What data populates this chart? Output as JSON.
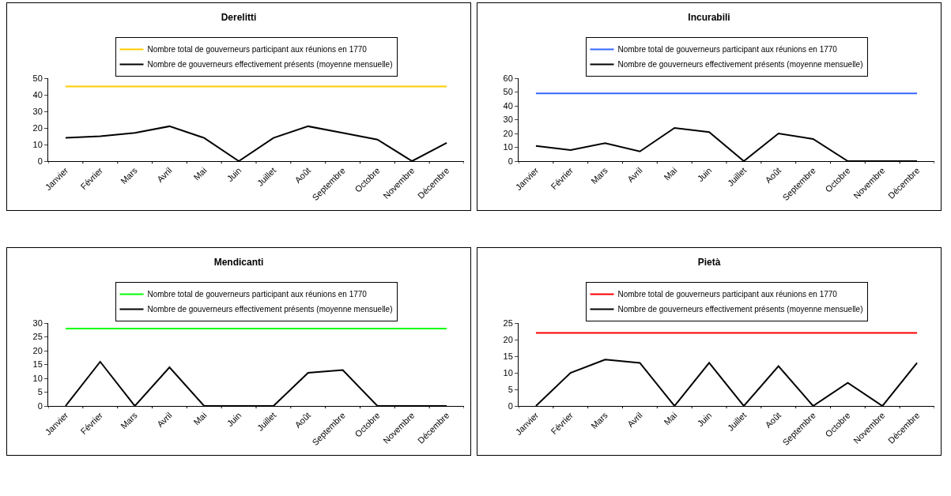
{
  "chart_data": [
    {
      "type": "line",
      "title": "Derelitti",
      "categories": [
        "Janvier",
        "Février",
        "Mars",
        "Avril",
        "Mai",
        "Juin",
        "Juillet",
        "Août",
        "Septembre",
        "Octobre",
        "Novembre",
        "Décembre"
      ],
      "ylim": [
        0,
        50
      ],
      "yticks": [
        0,
        10,
        20,
        30,
        40,
        50
      ],
      "grid": false,
      "legend": "top",
      "marker": "none",
      "line_style": "solid",
      "series": [
        {
          "name": "Nombre total de gouverneurs participant aux réunions en 1770",
          "color": "#ffcc00",
          "values": [
            45,
            45,
            45,
            45,
            45,
            45,
            45,
            45,
            45,
            45,
            45,
            45
          ]
        },
        {
          "name": "Nombre de gouverneurs effectivement présents (moyenne mensuelle)",
          "color": "#000000",
          "values": [
            14,
            15,
            17,
            21,
            14,
            0,
            14,
            21,
            17,
            13,
            0,
            11
          ]
        }
      ]
    },
    {
      "type": "line",
      "title": "Incurabili",
      "categories": [
        "Janvier",
        "Février",
        "Mars",
        "Avril",
        "Mai",
        "Juin",
        "Juillet",
        "Août",
        "Septembre",
        "Octobre",
        "Novembre",
        "Décembre"
      ],
      "ylim": [
        0,
        60
      ],
      "yticks": [
        0,
        10,
        20,
        30,
        40,
        50,
        60
      ],
      "grid": false,
      "legend": "top",
      "marker": "none",
      "line_style": "solid",
      "series": [
        {
          "name": "Nombre total de gouverneurs participant aux réunions en 1770",
          "color": "#3366ff",
          "values": [
            49,
            49,
            49,
            49,
            49,
            49,
            49,
            49,
            49,
            49,
            49,
            49
          ]
        },
        {
          "name": "Nombre de gouverneurs effectivement présents (moyenne mensuelle)",
          "color": "#000000",
          "values": [
            11,
            8,
            13,
            7,
            24,
            21,
            0,
            20,
            16,
            0,
            0,
            0
          ]
        }
      ]
    },
    {
      "type": "line",
      "title": "Mendicanti",
      "categories": [
        "Janvier",
        "Février",
        "Mars",
        "Avril",
        "Mai",
        "Juin",
        "Juillet",
        "Août",
        "Septembre",
        "Octobre",
        "Novembre",
        "Décembre"
      ],
      "ylim": [
        0,
        30
      ],
      "yticks": [
        0,
        5,
        10,
        15,
        20,
        25,
        30
      ],
      "grid": false,
      "legend": "top",
      "marker": "none",
      "line_style": "solid",
      "series": [
        {
          "name": "Nombre total de gouverneurs participant aux réunions en 1770",
          "color": "#00ff00",
          "values": [
            28,
            28,
            28,
            28,
            28,
            28,
            28,
            28,
            28,
            28,
            28,
            28
          ]
        },
        {
          "name": "Nombre de gouverneurs effectivement présents (moyenne mensuelle)",
          "color": "#000000",
          "values": [
            0,
            16,
            0,
            14,
            0,
            0,
            0,
            12,
            13,
            0,
            0,
            0
          ]
        }
      ]
    },
    {
      "type": "line",
      "title": "Pietà",
      "categories": [
        "Janvier",
        "Février",
        "Mars",
        "Avril",
        "Mai",
        "Juin",
        "Juillet",
        "Août",
        "Septembre",
        "Octobre",
        "Novembre",
        "Décembre"
      ],
      "ylim": [
        0,
        25
      ],
      "yticks": [
        0,
        5,
        10,
        15,
        20,
        25
      ],
      "grid": false,
      "legend": "top",
      "marker": "none",
      "line_style": "solid",
      "series": [
        {
          "name": "Nombre total de gouverneurs participant aux réunions en 1770",
          "color": "#ff0000",
          "values": [
            22,
            22,
            22,
            22,
            22,
            22,
            22,
            22,
            22,
            22,
            22,
            22
          ]
        },
        {
          "name": "Nombre de gouverneurs effectivement présents (moyenne mensuelle)",
          "color": "#000000",
          "values": [
            0,
            10,
            14,
            13,
            0,
            13,
            0,
            12,
            0,
            7,
            0,
            13
          ]
        }
      ]
    }
  ]
}
